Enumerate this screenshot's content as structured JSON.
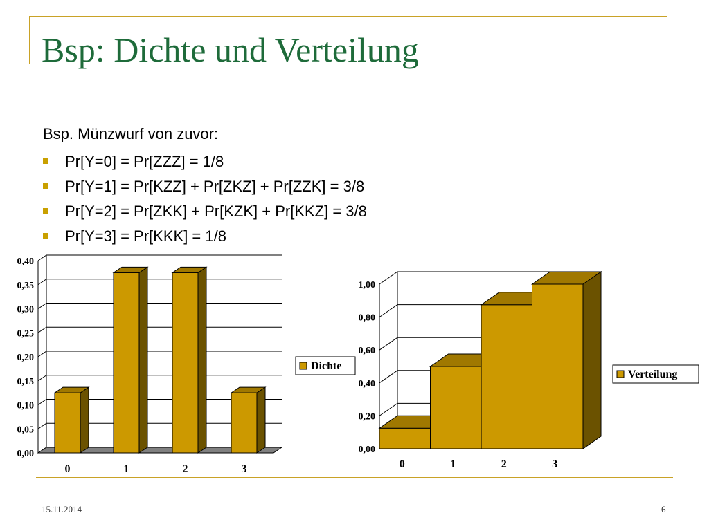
{
  "slide": {
    "title": "Bsp: Dichte und Verteilung",
    "intro": "Bsp. Münzwurf von zuvor:",
    "bullets": [
      "Pr[Y=0] = Pr[ZZZ] = 1/8",
      "Pr[Y=1] = Pr[KZZ] + Pr[ZKZ] + Pr[ZZK] = 3/8",
      "Pr[Y=2] = Pr[ZKK] + Pr[KZK] + Pr[KKZ] = 3/8",
      "Pr[Y=3] = Pr[KKK] = 1/8"
    ],
    "footer": {
      "date": "15.11.2014",
      "page": "6"
    }
  },
  "colors": {
    "title": "#1e6b3a",
    "accent_rule": "#c9a227",
    "bullet": "#c9a000",
    "bar_front": "#cc9900",
    "bar_top": "#a07800",
    "bar_side": "#6b5200",
    "floor": "#808080"
  },
  "chart_data": [
    {
      "type": "bar",
      "style": "3d-column",
      "categories": [
        "0",
        "1",
        "2",
        "3"
      ],
      "series": [
        {
          "name": "Dichte",
          "values": [
            0.125,
            0.375,
            0.375,
            0.125
          ]
        }
      ],
      "y_ticks": [
        "0,00",
        "0,05",
        "0,10",
        "0,15",
        "0,20",
        "0,25",
        "0,30",
        "0,35",
        "0,40"
      ],
      "ylim": [
        0,
        0.4
      ],
      "grid": true,
      "legend": "right"
    },
    {
      "type": "bar",
      "style": "3d-step-columns",
      "categories": [
        "0",
        "1",
        "2",
        "3"
      ],
      "series": [
        {
          "name": "Verteilung",
          "values": [
            0.125,
            0.5,
            0.875,
            1.0
          ]
        }
      ],
      "y_ticks": [
        "0,00",
        "0,20",
        "0,40",
        "0,60",
        "0,80",
        "1,00"
      ],
      "ylim": [
        0,
        1.0
      ],
      "grid": true,
      "legend": "right"
    }
  ]
}
